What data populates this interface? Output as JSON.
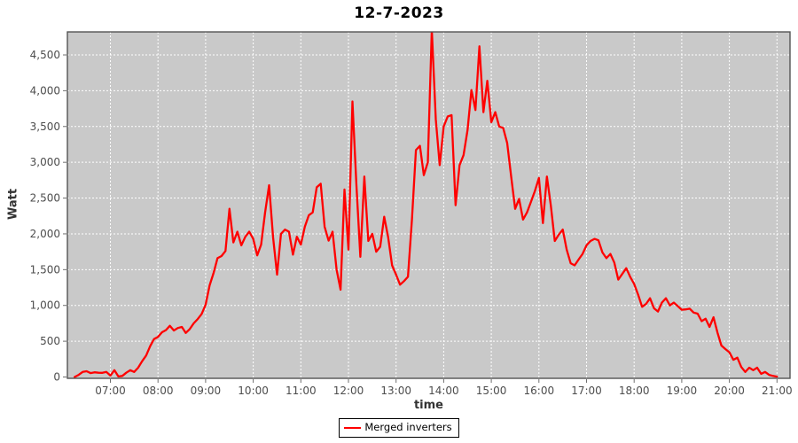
{
  "title": "12-7-2023",
  "colors": {
    "line": "#ff0000",
    "plot_background": "#c9c9c9",
    "gridline": "#ffffff",
    "plot_border": "#545454",
    "tick_text": "#4d4d4d",
    "axis_label_text": "#333333",
    "title_text": "#000000",
    "legend_border": "#000000",
    "legend_background": "#ffffff"
  },
  "chart_data": {
    "type": "line",
    "title": "12-7-2023",
    "xlabel": "time",
    "ylabel": "Watt",
    "grid": true,
    "legend_position": "bottom",
    "x_ticks": [
      "07:00",
      "08:00",
      "09:00",
      "10:00",
      "11:00",
      "12:00",
      "13:00",
      "14:00",
      "15:00",
      "16:00",
      "17:00",
      "18:00",
      "19:00",
      "20:00",
      "21:00"
    ],
    "y_ticks": [
      0,
      500,
      1000,
      1500,
      2000,
      2500,
      3000,
      3500,
      4000,
      4500
    ],
    "y_tick_labels": [
      "0",
      "500",
      "1,000",
      "1,500",
      "2,000",
      "2,500",
      "3,000",
      "3,500",
      "4,000",
      "4,500"
    ],
    "ylim": [
      0,
      4820
    ],
    "xlim_hours": [
      6.1,
      21.27
    ],
    "x_start": "06:15",
    "x_step_minutes": 5,
    "series": [
      {
        "name": "Merged inverters",
        "color": "#ff0000",
        "values": [
          0,
          30,
          70,
          80,
          55,
          65,
          60,
          58,
          70,
          20,
          95,
          8,
          15,
          60,
          95,
          70,
          130,
          220,
          300,
          430,
          530,
          560,
          625,
          655,
          715,
          650,
          685,
          700,
          615,
          670,
          750,
          810,
          880,
          1010,
          1280,
          1450,
          1660,
          1690,
          1760,
          2350,
          1880,
          2030,
          1840,
          1960,
          2030,
          1930,
          1700,
          1850,
          2300,
          2680,
          1950,
          1430,
          2000,
          2060,
          2030,
          1710,
          1960,
          1850,
          2100,
          2260,
          2300,
          2650,
          2700,
          2100,
          1905,
          2030,
          1500,
          1220,
          2620,
          1780,
          3850,
          2700,
          1680,
          2800,
          1900,
          2000,
          1750,
          1820,
          2240,
          1950,
          1560,
          1430,
          1290,
          1340,
          1400,
          2200,
          3170,
          3230,
          2820,
          3000,
          4850,
          3600,
          2960,
          3500,
          3640,
          3660,
          2400,
          2960,
          3100,
          3450,
          4010,
          3730,
          4620,
          3700,
          4140,
          3560,
          3700,
          3500,
          3480,
          3270,
          2800,
          2350,
          2490,
          2200,
          2300,
          2450,
          2600,
          2780,
          2150,
          2800,
          2400,
          1900,
          1990,
          2060,
          1780,
          1590,
          1560,
          1640,
          1720,
          1840,
          1900,
          1930,
          1910,
          1740,
          1660,
          1720,
          1600,
          1360,
          1440,
          1520,
          1400,
          1300,
          1150,
          980,
          1020,
          1100,
          960,
          915,
          1040,
          1100,
          1000,
          1040,
          990,
          940,
          945,
          955,
          900,
          885,
          780,
          815,
          700,
          835,
          620,
          440,
          390,
          345,
          240,
          270,
          140,
          70,
          130,
          95,
          130,
          45,
          70,
          30,
          15,
          5
        ]
      }
    ]
  }
}
